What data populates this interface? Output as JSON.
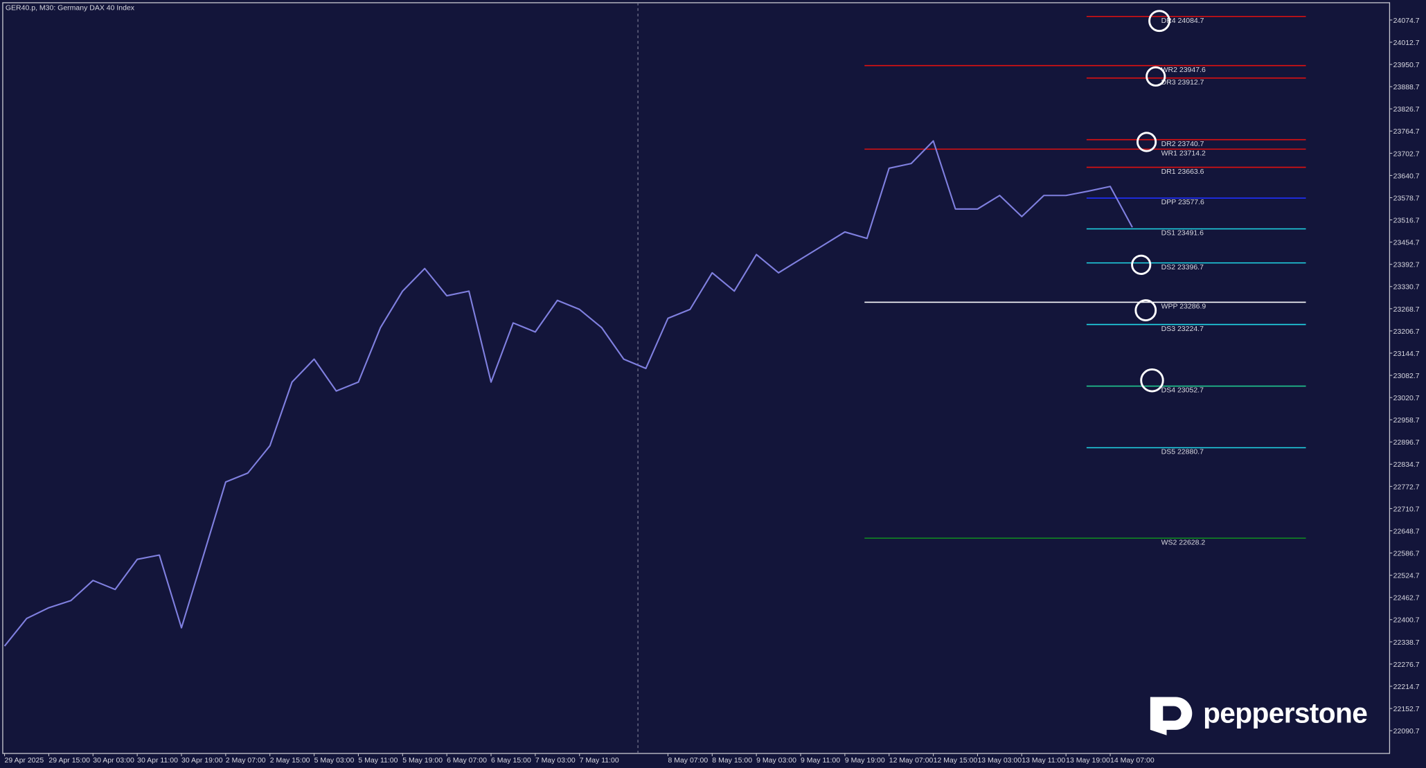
{
  "chart_data": {
    "type": "line",
    "title": "GER40.p, M30:  Germany DAX 40 Index",
    "categories": [
      "29 Apr 2025",
      null,
      "29 Apr 15:00",
      null,
      "30 Apr 03:00",
      null,
      "30 Apr 11:00",
      null,
      "30 Apr 19:00",
      null,
      "2 May 07:00",
      null,
      "2 May 15:00",
      null,
      "5 May 03:00",
      null,
      "5 May 11:00",
      null,
      "5 May 19:00",
      null,
      "6 May 07:00",
      null,
      "6 May 15:00",
      null,
      "7 May 03:00",
      null,
      "7 May 11:00",
      null,
      null,
      null,
      "8 May 07:00",
      null,
      "8 May 15:00",
      null,
      "9 May 03:00",
      null,
      "9 May 11:00",
      null,
      "9 May 19:00",
      null,
      "12 May 07:00",
      null,
      "12 May 15:00",
      null,
      "13 May 03:00",
      null,
      "13 May 11:00",
      null,
      "13 May 19:00",
      null,
      "14 May 07:00",
      null
    ],
    "values": [
      22327,
      22404,
      22434,
      22454,
      22510,
      22485,
      22569,
      22581,
      22378,
      22581,
      22785,
      22810,
      22886,
      23064,
      23128,
      23039,
      23064,
      23216,
      23318,
      23381,
      23305,
      23318,
      23064,
      23229,
      23204,
      23292,
      23267,
      23216,
      23128,
      23102,
      23242,
      23267,
      23369,
      23318,
      23420,
      23369,
      23407,
      23445,
      23483,
      23465,
      23661,
      23674,
      23737,
      23547,
      23547,
      23585,
      23526,
      23585,
      23585,
      23597,
      23610,
      23496
    ],
    "color": "#8080e0",
    "ylim": [
      22027.2,
      24130.6
    ],
    "yticks": [
      22090.7,
      22152.7,
      22214.7,
      22276.7,
      22338.7,
      22400.7,
      22462.7,
      22524.7,
      22586.7,
      22648.7,
      22710.7,
      22772.7,
      22834.7,
      22896.7,
      22958.7,
      23020.7,
      23082.7,
      23144.7,
      23206.7,
      23268.7,
      23330.7,
      23392.7,
      23454.7,
      23516.7,
      23578.7,
      23640.7,
      23702.7,
      23764.7,
      23826.7,
      23888.7,
      23950.7,
      24012.7,
      24074.7
    ],
    "levels": [
      {
        "label": "DR4 24084.7",
        "value": 24084.7,
        "color": "#e01010"
      },
      {
        "label": "WR2 23947.6",
        "value": 23947.6,
        "color": "#e01010"
      },
      {
        "label": "DR3 23912.7",
        "value": 23912.7,
        "color": "#e01010"
      },
      {
        "label": "DR2 23740.7",
        "value": 23740.7,
        "color": "#e01010"
      },
      {
        "label": "WR1 23714.2",
        "value": 23714.2,
        "color": "#e01010"
      },
      {
        "label": "DR1 23663.6",
        "value": 23663.6,
        "color": "#e01010"
      },
      {
        "label": "DPP 23577.6",
        "value": 23577.6,
        "color": "#2030ff"
      },
      {
        "label": "DS1 23491.6",
        "value": 23491.6,
        "color": "#20d8e8"
      },
      {
        "label": "DS2 23396.7",
        "value": 23396.7,
        "color": "#20d8e8"
      },
      {
        "label": "WPP 23286.9",
        "value": 23286.9,
        "color": "#ffffff"
      },
      {
        "label": "DS3 23224.7",
        "value": 23224.7,
        "color": "#20d8e8"
      },
      {
        "label": "DS4 23052.7",
        "value": 23052.7,
        "color": "#20c890"
      },
      {
        "label": "DS5 22880.7",
        "value": 22880.7,
        "color": "#20d8e8"
      },
      {
        "label": "WS2 22628.2",
        "value": 22628.2,
        "color": "#109020"
      }
    ]
  },
  "brand": "pepperstone"
}
